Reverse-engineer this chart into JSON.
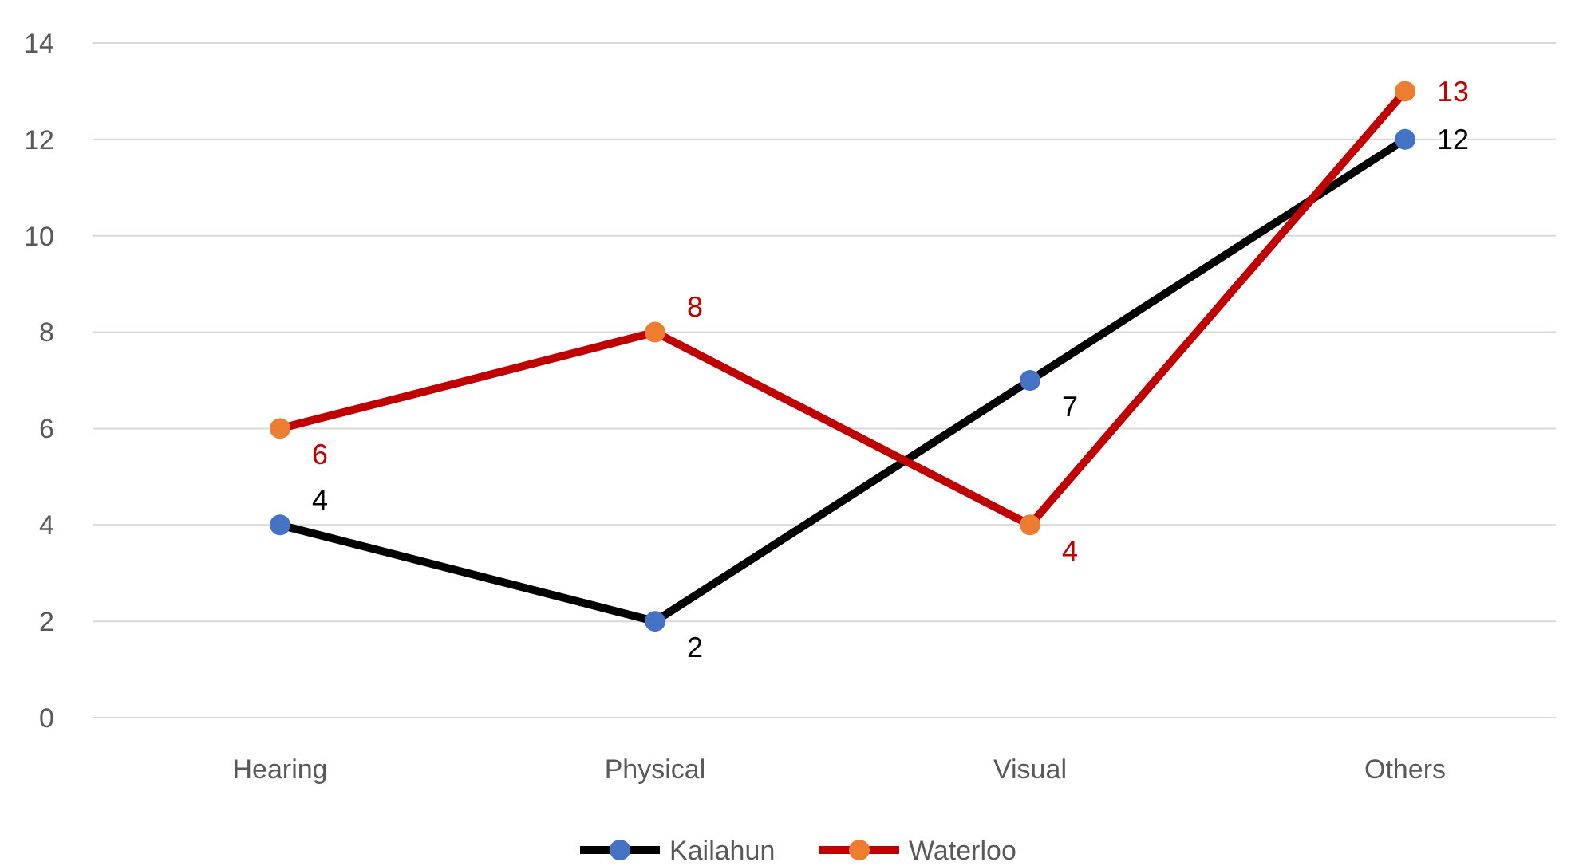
{
  "chart_data": {
    "type": "line",
    "categories": [
      "Hearing",
      "Physical",
      "Visual",
      "Others"
    ],
    "series": [
      {
        "name": "Kailahun",
        "color": "#000000",
        "colors": [
          "#4472c4",
          "#4472c4",
          "#4472c4",
          "#4472c4"
        ],
        "values": [
          4,
          2,
          7,
          12
        ]
      },
      {
        "name": "Waterloo",
        "color": "#c00000",
        "colors": [
          "#ed7d31",
          "#ed7d31",
          "#ed7d31",
          "#ed7d31"
        ],
        "values": [
          6,
          8,
          4,
          13
        ]
      }
    ],
    "ylim": [
      0,
      14
    ],
    "yticks": [
      0,
      2,
      4,
      6,
      8,
      10,
      12,
      14
    ],
    "grid": "y",
    "legend": "bottom",
    "marker": "circle",
    "line_style": "solid",
    "data_labels": true
  }
}
